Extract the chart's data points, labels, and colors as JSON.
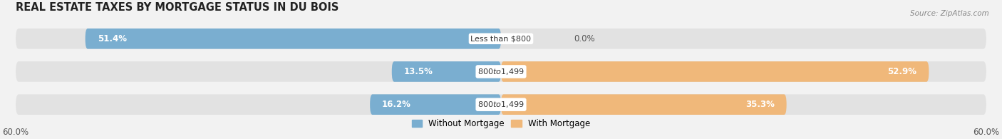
{
  "title": "REAL ESTATE TAXES BY MORTGAGE STATUS IN DU BOIS",
  "source": "Source: ZipAtlas.com",
  "rows": [
    {
      "label": "Less than $800",
      "without_mortgage": 51.4,
      "with_mortgage": 0.0
    },
    {
      "label": "$800 to $1,499",
      "without_mortgage": 13.5,
      "with_mortgage": 52.9
    },
    {
      "label": "$800 to $1,499",
      "without_mortgage": 16.2,
      "with_mortgage": 35.3
    }
  ],
  "x_max": 60.0,
  "x_min": -60.0,
  "color_without": "#7aaed0",
  "color_with": "#f0b87a",
  "color_without_label": "#aac8e0",
  "bar_height": 0.62,
  "bg_color": "#efefef",
  "title_fontsize": 10.5,
  "label_fontsize": 8.5,
  "tick_fontsize": 8.5,
  "legend_fontsize": 8.5
}
